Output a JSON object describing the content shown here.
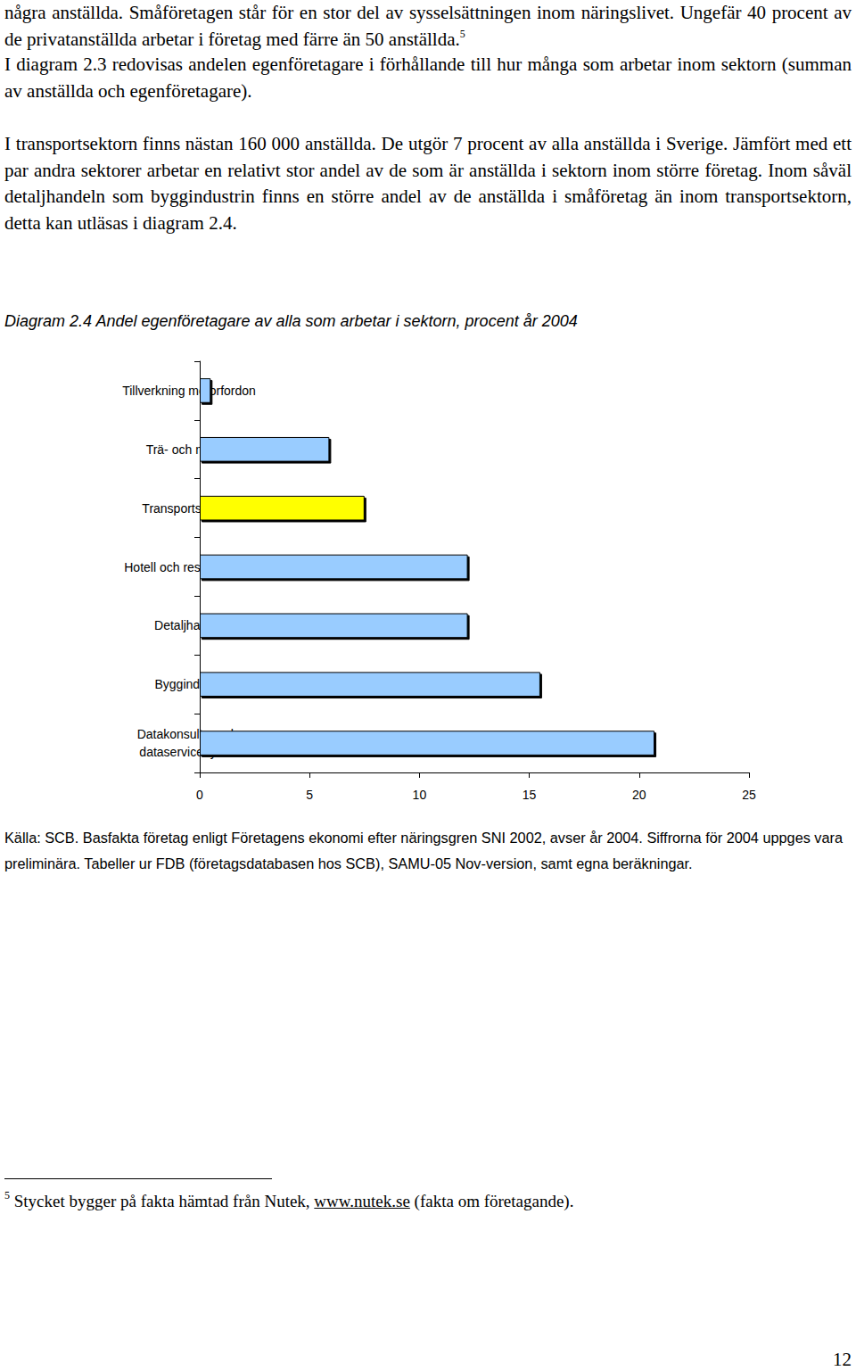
{
  "paragraphs": [
    {
      "text": "några anställda. Småföretagen står för en stor del av sysselsättningen inom näringslivet. Ungefär 40 procent av de privatanställda arbetar i företag med färre än 50 anställda.",
      "footnote_ref": "5"
    },
    {
      "text": "I diagram 2.3 redovisas andelen egenföretagare i förhållande till hur många som arbetar inom sektorn (summan av anställda och egenföretagare)."
    },
    {
      "text": "I transportsektorn finns nästan 160 000 anställda. De utgör 7 procent av alla anställda i Sverige. Jämfört med ett par andra sektorer arbetar en relativt stor andel av de som är anställda i sektorn inom större företag. Inom såväl detaljhandeln som byggindustrin finns en större andel av de anställda i småföretag än inom transportsektorn, detta kan utläsas i diagram 2.4."
    }
  ],
  "chart_data": {
    "type": "bar",
    "orientation": "horizontal",
    "title": "Diagram 2.4 Andel egenföretagare av alla som arbetar i sektorn, procent år 2004",
    "categories": [
      "Tillverkning motorfordon",
      "Trä- och massa",
      "Transportsektorn",
      "Hotell och restauranger",
      "Detaljhandel",
      "Byggindustri",
      "Datakonsulter och dataservicebyråer"
    ],
    "values": [
      0.5,
      5.9,
      7.5,
      12.2,
      12.2,
      15.5,
      20.7
    ],
    "colors": [
      "#99ccff",
      "#99ccff",
      "#ffff00",
      "#99ccff",
      "#99ccff",
      "#99ccff",
      "#99ccff"
    ],
    "xlim": [
      0,
      25
    ],
    "xticks": [
      0,
      5,
      10,
      15,
      20,
      25
    ],
    "grid": false
  },
  "source": "Källa: SCB. Basfakta företag enligt Företagens ekonomi efter näringsgren SNI 2002, avser år 2004. Siffrorna för 2004 uppges vara preliminära. Tabeller ur FDB (företagsdatabasen hos SCB), SAMU-05 Nov-version, samt egna beräkningar.",
  "footnote": {
    "marker": "5",
    "text": "Stycket bygger på fakta hämtad från Nutek, ",
    "link": "www.nutek.se",
    "text_after": " (fakta om företagande)."
  },
  "page_number": "12"
}
